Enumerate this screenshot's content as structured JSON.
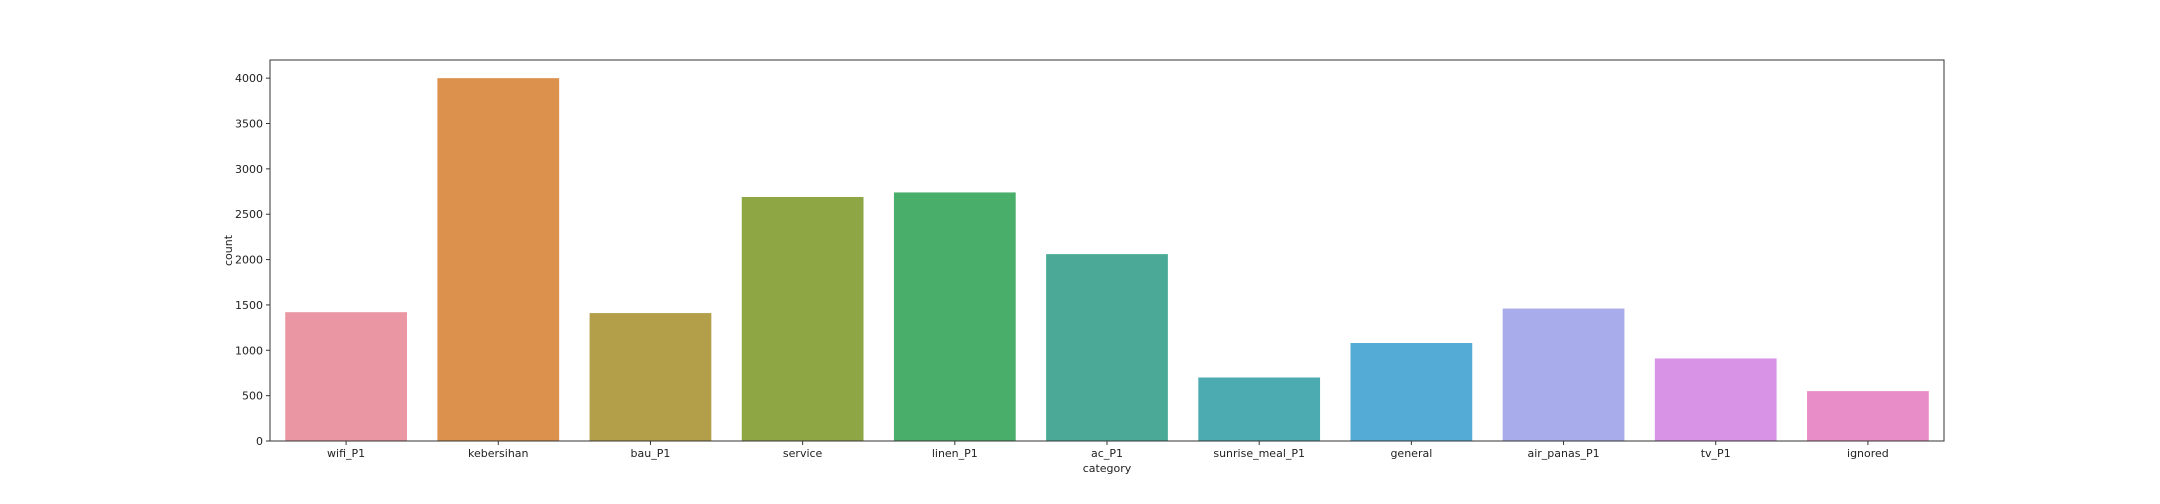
{
  "chart_data": {
    "type": "bar",
    "title": "",
    "xlabel": "category",
    "ylabel": "count",
    "categories": [
      "wifi_P1",
      "kebersihan",
      "bau_P1",
      "service",
      "linen_P1",
      "ac_P1",
      "sunrise_meal_P1",
      "general",
      "air_panas_P1",
      "tv_P1",
      "ignored"
    ],
    "values": [
      1420,
      4000,
      1410,
      2690,
      2740,
      2060,
      700,
      1080,
      1460,
      910,
      550
    ],
    "colors": [
      "#ea96a3",
      "#dc914d",
      "#b39e49",
      "#8ea643",
      "#48ae6a",
      "#4aaa97",
      "#4caab1",
      "#54abd6",
      "#a9acea",
      "#d893e7",
      "#e98dc8"
    ],
    "ylim": [
      0,
      4200
    ],
    "yticks": [
      0,
      500,
      1000,
      1500,
      2000,
      2500,
      3000,
      3500,
      4000
    ],
    "grid": false,
    "legend": "none"
  }
}
